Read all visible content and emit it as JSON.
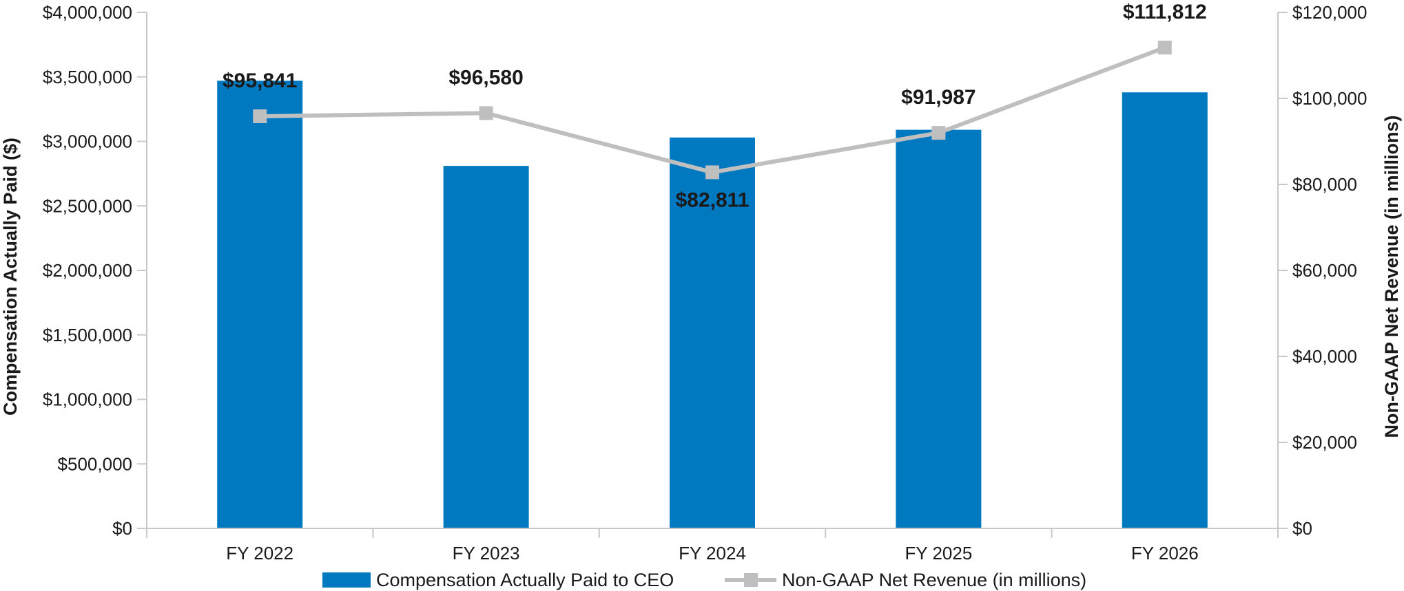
{
  "chart_data": {
    "type": "bar",
    "categories": [
      "FY 2022",
      "FY 2023",
      "FY 2024",
      "FY 2025",
      "FY 2026"
    ],
    "series": [
      {
        "name": "Compensation Actually Paid to CEO",
        "type": "bar",
        "axis": "left",
        "color": "#0079c1",
        "values": [
          3470000,
          2810000,
          3030000,
          3090000,
          3380000
        ]
      },
      {
        "name": "Non-GAAP Net Revenue (in millions)",
        "type": "line",
        "axis": "right",
        "color": "#bfbfbf",
        "values": [
          95841,
          96580,
          82811,
          91987,
          111812
        ],
        "data_labels": [
          "$95,841",
          "$96,580",
          "$82,811",
          "$91,987",
          "$111,812"
        ],
        "label_placement": [
          "above",
          "above",
          "below",
          "above",
          "above"
        ]
      }
    ],
    "left_axis": {
      "label": "Compensation Actually Paid ($)",
      "ylim": [
        0,
        4000000
      ],
      "ticks": [
        0,
        500000,
        1000000,
        1500000,
        2000000,
        2500000,
        3000000,
        3500000,
        4000000
      ],
      "tick_labels": [
        "$0",
        "$500,000",
        "$1,000,000",
        "$1,500,000",
        "$2,000,000",
        "$2,500,000",
        "$3,000,000",
        "$3,500,000",
        "$4,000,000"
      ]
    },
    "right_axis": {
      "label": "Non-GAAP Net Revenue (in millions)",
      "ylim": [
        0,
        120000
      ],
      "ticks": [
        0,
        20000,
        40000,
        60000,
        80000,
        100000,
        120000
      ],
      "tick_labels": [
        "$0",
        "$20,000",
        "$40,000",
        "$60,000",
        "$80,000",
        "$100,000",
        "$120,000"
      ]
    },
    "grid": false,
    "legend": {
      "position": "bottom",
      "entries": [
        {
          "label": "Compensation Actually Paid to CEO",
          "symbol": "bar",
          "color": "#0079c1"
        },
        {
          "label": "Non-GAAP Net Revenue (in millions)",
          "symbol": "line-square",
          "color": "#bfbfbf"
        }
      ]
    },
    "axis_color": "#c8c8c8"
  }
}
